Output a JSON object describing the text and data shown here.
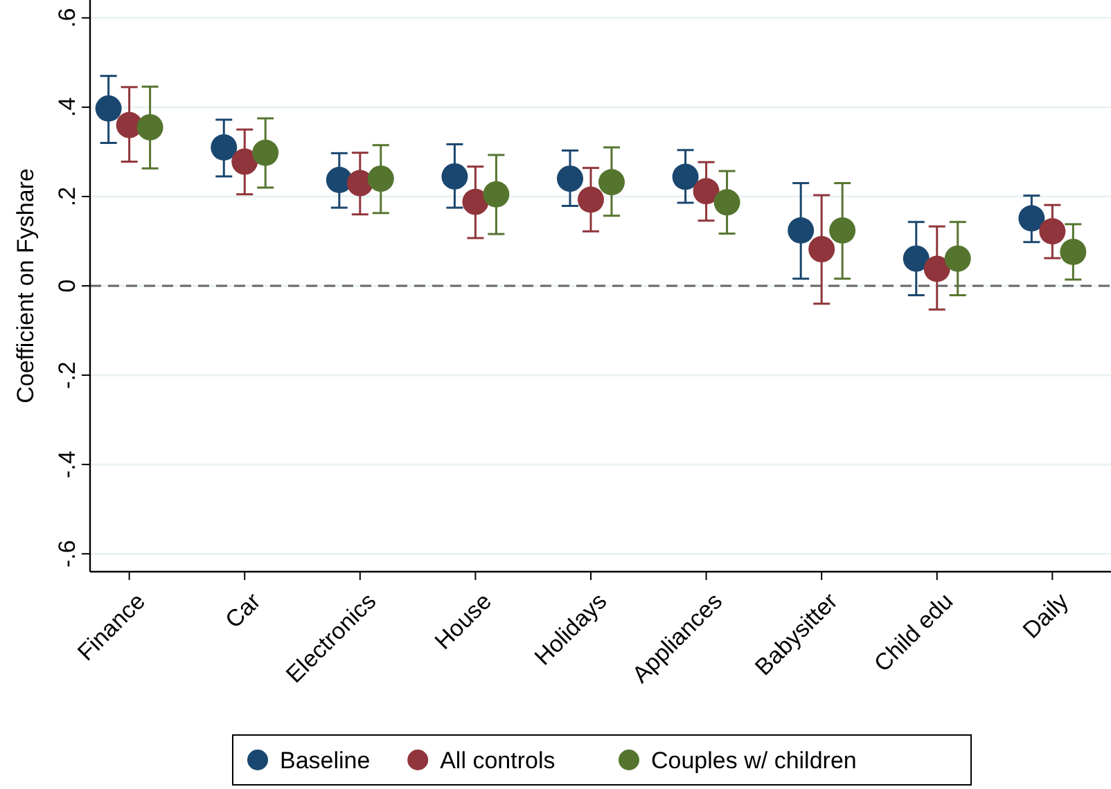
{
  "chart_data": {
    "type": "scatter",
    "ylabel": "Coefficient on Fyshare",
    "categories": [
      "Finance",
      "Car",
      "Electronics",
      "House",
      "Holidays",
      "Appliances",
      "Babysitter",
      "Child edu",
      "Daily"
    ],
    "series": [
      {
        "name": "Baseline",
        "color": "#1a476f",
        "values": [
          0.397,
          0.31,
          0.237,
          0.245,
          0.24,
          0.244,
          0.124,
          0.061,
          0.151
        ],
        "errors": [
          [
            0.32,
            0.47
          ],
          [
            0.245,
            0.372
          ],
          [
            0.175,
            0.297
          ],
          [
            0.175,
            0.317
          ],
          [
            0.179,
            0.303
          ],
          [
            0.186,
            0.304
          ],
          [
            0.016,
            0.23
          ],
          [
            -0.021,
            0.143
          ],
          [
            0.098,
            0.202
          ]
        ]
      },
      {
        "name": "All controls",
        "color": "#90353b",
        "values": [
          0.36,
          0.278,
          0.23,
          0.188,
          0.193,
          0.212,
          0.082,
          0.038,
          0.122
        ],
        "errors": [
          [
            0.278,
            0.445
          ],
          [
            0.205,
            0.35
          ],
          [
            0.16,
            0.298
          ],
          [
            0.107,
            0.267
          ],
          [
            0.122,
            0.264
          ],
          [
            0.146,
            0.277
          ],
          [
            -0.04,
            0.203
          ],
          [
            -0.053,
            0.133
          ],
          [
            0.062,
            0.181
          ]
        ]
      },
      {
        "name": "Couples w/ children",
        "color": "#55752f",
        "values": [
          0.355,
          0.298,
          0.24,
          0.205,
          0.232,
          0.187,
          0.124,
          0.061,
          0.076
        ],
        "errors": [
          [
            0.263,
            0.446
          ],
          [
            0.22,
            0.375
          ],
          [
            0.163,
            0.315
          ],
          [
            0.116,
            0.293
          ],
          [
            0.157,
            0.31
          ],
          [
            0.117,
            0.257
          ],
          [
            0.016,
            0.23
          ],
          [
            -0.021,
            0.143
          ],
          [
            0.014,
            0.138
          ]
        ]
      }
    ],
    "ylim": [
      -0.64,
      0.64
    ],
    "yticks": [
      {
        "value": -0.6,
        "label": "-.6"
      },
      {
        "value": -0.4,
        "label": "-.4"
      },
      {
        "value": -0.2,
        "label": "-.2"
      },
      0,
      {
        "value": 0.2,
        "label": ".2"
      },
      {
        "value": 0.4,
        "label": ".4"
      },
      {
        "value": 0.6,
        "label": ".6"
      }
    ],
    "ref_lines": [
      {
        "axis": "y",
        "value": 0,
        "color": "#666666",
        "line_style": "dashed"
      }
    ],
    "grid": "y",
    "legend": "bottom",
    "marker": "circle"
  }
}
